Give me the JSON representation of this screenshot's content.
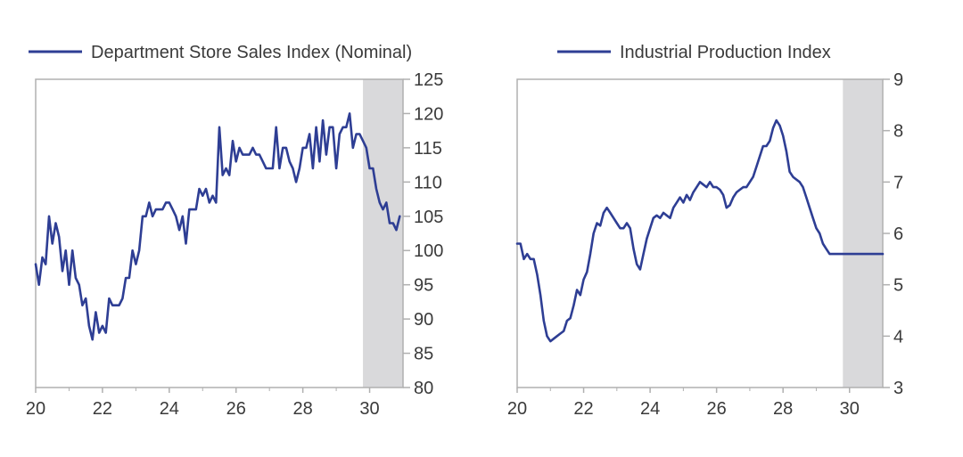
{
  "colors": {
    "line": "#2E3E94",
    "shade": "#D9D9DB",
    "axis": "#B0B0B0",
    "text": "#3a3a3a"
  },
  "chart_data": [
    {
      "type": "line",
      "title": "",
      "legend": "Department Store Sales Index (Nominal)",
      "legend_placement": "top-left",
      "xlabel": "",
      "ylabel": "",
      "xlim": [
        20,
        31
      ],
      "ylim": [
        80,
        125
      ],
      "x_ticks": [
        "20",
        "22",
        "24",
        "26",
        "28",
        "30"
      ],
      "y_ticks": [
        "80",
        "85",
        "90",
        "95",
        "100",
        "105",
        "110",
        "115",
        "120",
        "125"
      ],
      "y_axis_side": "right",
      "shaded_region": [
        29.8,
        31
      ],
      "grid": false,
      "series": [
        {
          "name": "Department Store Sales Index (Nominal)",
          "x": [
            20.0,
            20.1,
            20.2,
            20.3,
            20.4,
            20.5,
            20.6,
            20.7,
            20.8,
            20.9,
            21.0,
            21.1,
            21.2,
            21.3,
            21.4,
            21.5,
            21.6,
            21.7,
            21.8,
            21.9,
            22.0,
            22.1,
            22.2,
            22.3,
            22.4,
            22.5,
            22.6,
            22.7,
            22.8,
            22.9,
            23.0,
            23.1,
            23.2,
            23.3,
            23.4,
            23.5,
            23.6,
            23.7,
            23.8,
            23.9,
            24.0,
            24.1,
            24.2,
            24.3,
            24.4,
            24.5,
            24.6,
            24.7,
            24.8,
            24.9,
            25.0,
            25.1,
            25.2,
            25.3,
            25.4,
            25.5,
            25.6,
            25.7,
            25.8,
            25.9,
            26.0,
            26.1,
            26.2,
            26.3,
            26.4,
            26.5,
            26.6,
            26.7,
            26.8,
            26.9,
            27.0,
            27.1,
            27.2,
            27.3,
            27.4,
            27.5,
            27.6,
            27.7,
            27.8,
            27.9,
            28.0,
            28.1,
            28.2,
            28.3,
            28.4,
            28.5,
            28.6,
            28.7,
            28.8,
            28.9,
            29.0,
            29.1,
            29.2,
            29.3,
            29.4,
            29.5,
            29.6,
            29.7,
            29.8,
            29.9,
            30.0,
            30.1,
            30.2,
            30.3,
            30.4,
            30.5,
            30.6,
            30.7,
            30.8,
            30.9
          ],
          "y": [
            98,
            95,
            99,
            98,
            105,
            101,
            104,
            102,
            97,
            100,
            95,
            100,
            96,
            95,
            92,
            93,
            89,
            87,
            91,
            88,
            89,
            88,
            93,
            92,
            92,
            92,
            93,
            96,
            96,
            100,
            98,
            100,
            105,
            105,
            107,
            105,
            106,
            106,
            106,
            107,
            107,
            106,
            105,
            103,
            105,
            101,
            106,
            106,
            106,
            109,
            108,
            109,
            107,
            108,
            107,
            118,
            111,
            112,
            111,
            116,
            113,
            115,
            114,
            114,
            114,
            115,
            114,
            114,
            113,
            112,
            112,
            112,
            118,
            112,
            115,
            115,
            113,
            112,
            110,
            112,
            115,
            115,
            117,
            112,
            118,
            113,
            119,
            114,
            118,
            118,
            112,
            117,
            118,
            118,
            120,
            115,
            117,
            117,
            116,
            115,
            112,
            112,
            109,
            107,
            106,
            107,
            104,
            104,
            103,
            105
          ]
        }
      ]
    },
    {
      "type": "line",
      "title": "",
      "legend": "Industrial Production Index",
      "legend_placement": "top-left",
      "xlabel": "",
      "ylabel": "",
      "xlim": [
        20,
        31
      ],
      "ylim": [
        3,
        9
      ],
      "x_ticks": [
        "20",
        "22",
        "24",
        "26",
        "28",
        "30"
      ],
      "y_ticks": [
        "3",
        "4",
        "5",
        "6",
        "7",
        "8",
        "9"
      ],
      "y_axis_side": "right",
      "shaded_region": [
        29.8,
        31
      ],
      "grid": false,
      "series": [
        {
          "name": "Industrial Production Index",
          "x": [
            20.0,
            20.1,
            20.2,
            20.3,
            20.4,
            20.5,
            20.6,
            20.7,
            20.8,
            20.9,
            21.0,
            21.1,
            21.2,
            21.3,
            21.4,
            21.5,
            21.6,
            21.7,
            21.8,
            21.9,
            22.0,
            22.1,
            22.2,
            22.3,
            22.4,
            22.5,
            22.6,
            22.7,
            22.8,
            22.9,
            23.0,
            23.1,
            23.2,
            23.3,
            23.4,
            23.5,
            23.6,
            23.7,
            23.8,
            23.9,
            24.0,
            24.1,
            24.2,
            24.3,
            24.4,
            24.5,
            24.6,
            24.7,
            24.8,
            24.9,
            25.0,
            25.1,
            25.2,
            25.3,
            25.4,
            25.5,
            25.6,
            25.7,
            25.8,
            25.9,
            26.0,
            26.1,
            26.2,
            26.3,
            26.4,
            26.5,
            26.6,
            26.7,
            26.8,
            26.9,
            27.0,
            27.1,
            27.2,
            27.3,
            27.4,
            27.5,
            27.6,
            27.7,
            27.8,
            27.9,
            28.0,
            28.1,
            28.2,
            28.3,
            28.4,
            28.5,
            28.6,
            28.7,
            28.8,
            28.9,
            29.0,
            29.1,
            29.2,
            29.3,
            29.4,
            29.5,
            29.6,
            29.7,
            29.8,
            29.9,
            30.0,
            30.1,
            30.2,
            30.3,
            30.4,
            30.5,
            30.6,
            30.7,
            30.8,
            30.9,
            31.0
          ],
          "y": [
            5.8,
            5.8,
            5.5,
            5.6,
            5.5,
            5.5,
            5.2,
            4.8,
            4.3,
            4.0,
            3.9,
            3.95,
            4.0,
            4.05,
            4.1,
            4.3,
            4.35,
            4.6,
            4.9,
            4.8,
            5.1,
            5.25,
            5.6,
            6.0,
            6.2,
            6.15,
            6.4,
            6.5,
            6.4,
            6.3,
            6.2,
            6.1,
            6.1,
            6.2,
            6.1,
            5.7,
            5.4,
            5.3,
            5.6,
            5.9,
            6.1,
            6.3,
            6.35,
            6.3,
            6.4,
            6.35,
            6.3,
            6.5,
            6.6,
            6.7,
            6.6,
            6.75,
            6.65,
            6.8,
            6.9,
            7.0,
            6.95,
            6.9,
            7.0,
            6.9,
            6.9,
            6.85,
            6.75,
            6.5,
            6.55,
            6.7,
            6.8,
            6.85,
            6.9,
            6.9,
            7.0,
            7.1,
            7.3,
            7.5,
            7.7,
            7.7,
            7.8,
            8.05,
            8.2,
            8.1,
            7.9,
            7.6,
            7.2,
            7.1,
            7.05,
            7.0,
            6.9,
            6.7,
            6.5,
            6.3,
            6.1,
            6.0,
            5.8,
            5.7,
            5.6,
            5.6,
            5.6,
            5.6,
            5.6,
            5.6,
            5.6,
            5.6,
            5.6,
            5.6,
            5.6,
            5.6,
            5.6,
            5.6,
            5.6,
            5.6,
            5.6
          ]
        }
      ]
    }
  ]
}
